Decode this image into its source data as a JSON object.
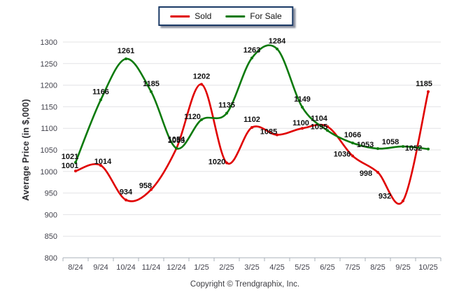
{
  "chart_data": {
    "type": "line",
    "title": "",
    "ylabel": "Average Price (in $,000)",
    "xlabel": "",
    "categories": [
      "8/24",
      "9/24",
      "10/24",
      "11/24",
      "12/24",
      "1/25",
      "2/25",
      "3/25",
      "4/25",
      "5/25",
      "6/25",
      "7/25",
      "8/25",
      "9/25",
      "10/25"
    ],
    "series": [
      {
        "name": "Sold",
        "color": "#e00000",
        "values": [
          1001,
          1014,
          934,
          958,
          1053,
          1202,
          1020,
          1102,
          1085,
          1100,
          1104,
          1036,
          998,
          932,
          1185
        ]
      },
      {
        "name": "For Sale",
        "color": "#0b7a0b",
        "values": [
          1021,
          1166,
          1261,
          1185,
          1054,
          1120,
          1135,
          1263,
          1284,
          1149,
          1095,
          1066,
          1053,
          1058,
          1052
        ]
      }
    ],
    "ylim": [
      800,
      1300
    ],
    "yticks": [
      800,
      850,
      900,
      950,
      1000,
      1050,
      1100,
      1150,
      1200,
      1250,
      1300
    ],
    "grid": true,
    "smooth": true,
    "point_labels": true,
    "legend_position": "top-center",
    "label_offsets": {
      "0": {
        "0": [
          -8,
          4
        ],
        "1": [
          3,
          6
        ],
        "3": [
          -8,
          6
        ],
        "6": [
          -14,
          10
        ],
        "8": [
          -12,
          7
        ],
        "9": [
          -2,
          4
        ],
        "10": [
          -12,
          0
        ],
        "11": [
          -15,
          9
        ],
        "12": [
          -17,
          13
        ],
        "13": [
          -26,
          5
        ],
        "14": [
          -6,
          0
        ]
      },
      "1": {
        "0": [
          -8,
          3
        ],
        "4": [
          0,
          -1
        ],
        "5": [
          -13,
          7
        ],
        "10": [
          -12,
          6
        ],
        "12": [
          -18,
          6
        ],
        "13": [
          -18,
          5
        ],
        "14": [
          -21,
          10
        ]
      }
    }
  },
  "footer": {
    "copyright": "Copyright © Trendgraphix, Inc."
  },
  "colors": {
    "grid": "#e3e3e6",
    "axis": "#aab1ba",
    "tick_label": "#43434d",
    "data_label": "#101010",
    "legend_border": "#1b3a66",
    "axis_title": "#2e2e33",
    "copyright": "#3d3d42"
  }
}
